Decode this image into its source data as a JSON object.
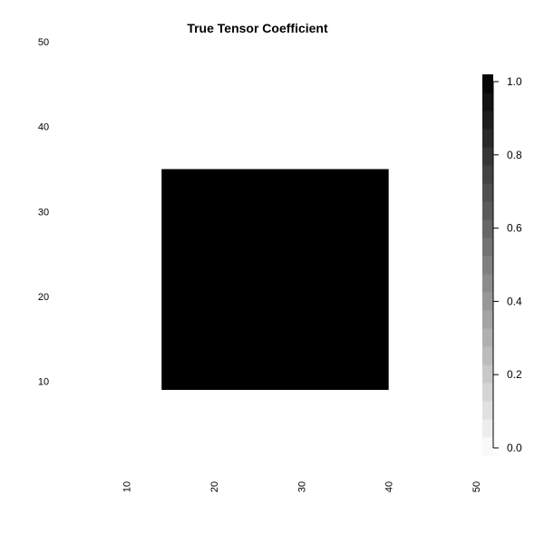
{
  "chart_data": {
    "type": "heatmap",
    "title": "True Tensor Coefficient",
    "xlabel": "",
    "ylabel": "",
    "xlim": [
      1,
      50
    ],
    "ylim": [
      1,
      50
    ],
    "x_ticks": [
      "10",
      "20",
      "30",
      "40",
      "50"
    ],
    "y_ticks": [
      "10",
      "20",
      "30",
      "40",
      "50"
    ],
    "background_value": 0.0,
    "regions": [
      {
        "x_range": [
          14,
          40
        ],
        "y_range": [
          9,
          35
        ],
        "value": 1.0
      }
    ],
    "colorbar": {
      "range": [
        0.0,
        1.0
      ],
      "levels": 21,
      "low_color": "#ffffff",
      "high_color": "#000000",
      "tick_labels": [
        "0.0",
        "0.2",
        "0.4",
        "0.6",
        "0.8",
        "1.0"
      ]
    },
    "grid": false
  }
}
